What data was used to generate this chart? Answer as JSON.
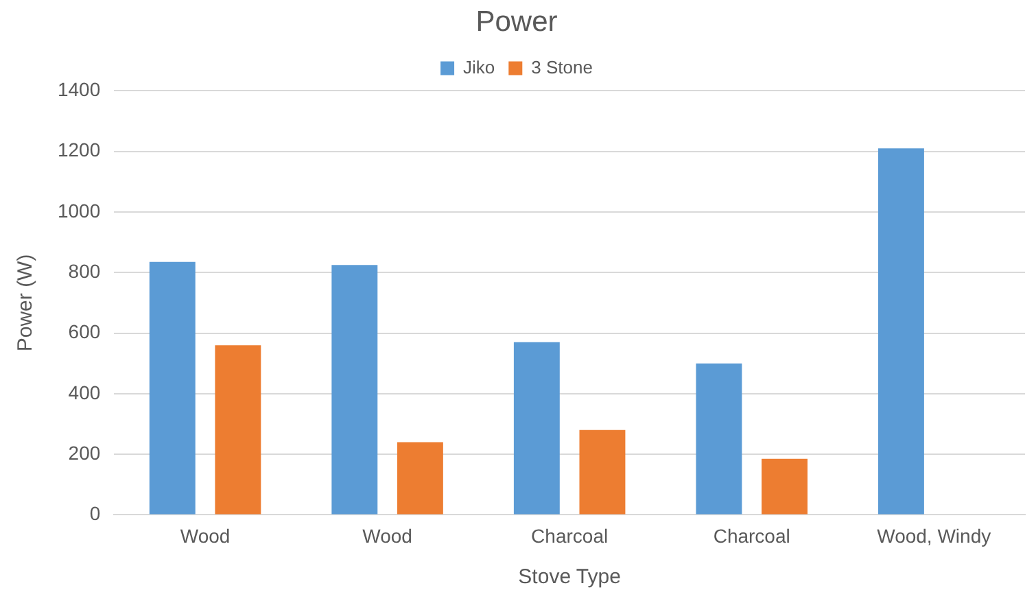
{
  "chart_data": {
    "type": "bar",
    "title": "Power",
    "xlabel": "Stove Type",
    "ylabel": "Power (W)",
    "categories": [
      "Wood",
      "Wood",
      "Charcoal",
      "Charcoal",
      "Wood, Windy"
    ],
    "series": [
      {
        "name": "Jiko",
        "color": "#5b9bd5",
        "values": [
          835,
          825,
          570,
          500,
          1210
        ]
      },
      {
        "name": "3 Stone",
        "color": "#ed7d31",
        "values": [
          560,
          240,
          280,
          185,
          null
        ]
      }
    ],
    "ylim": [
      0,
      1400
    ],
    "yticks": [
      0,
      200,
      400,
      600,
      800,
      1000,
      1200,
      1400
    ],
    "grid": "y",
    "legend": "top"
  }
}
